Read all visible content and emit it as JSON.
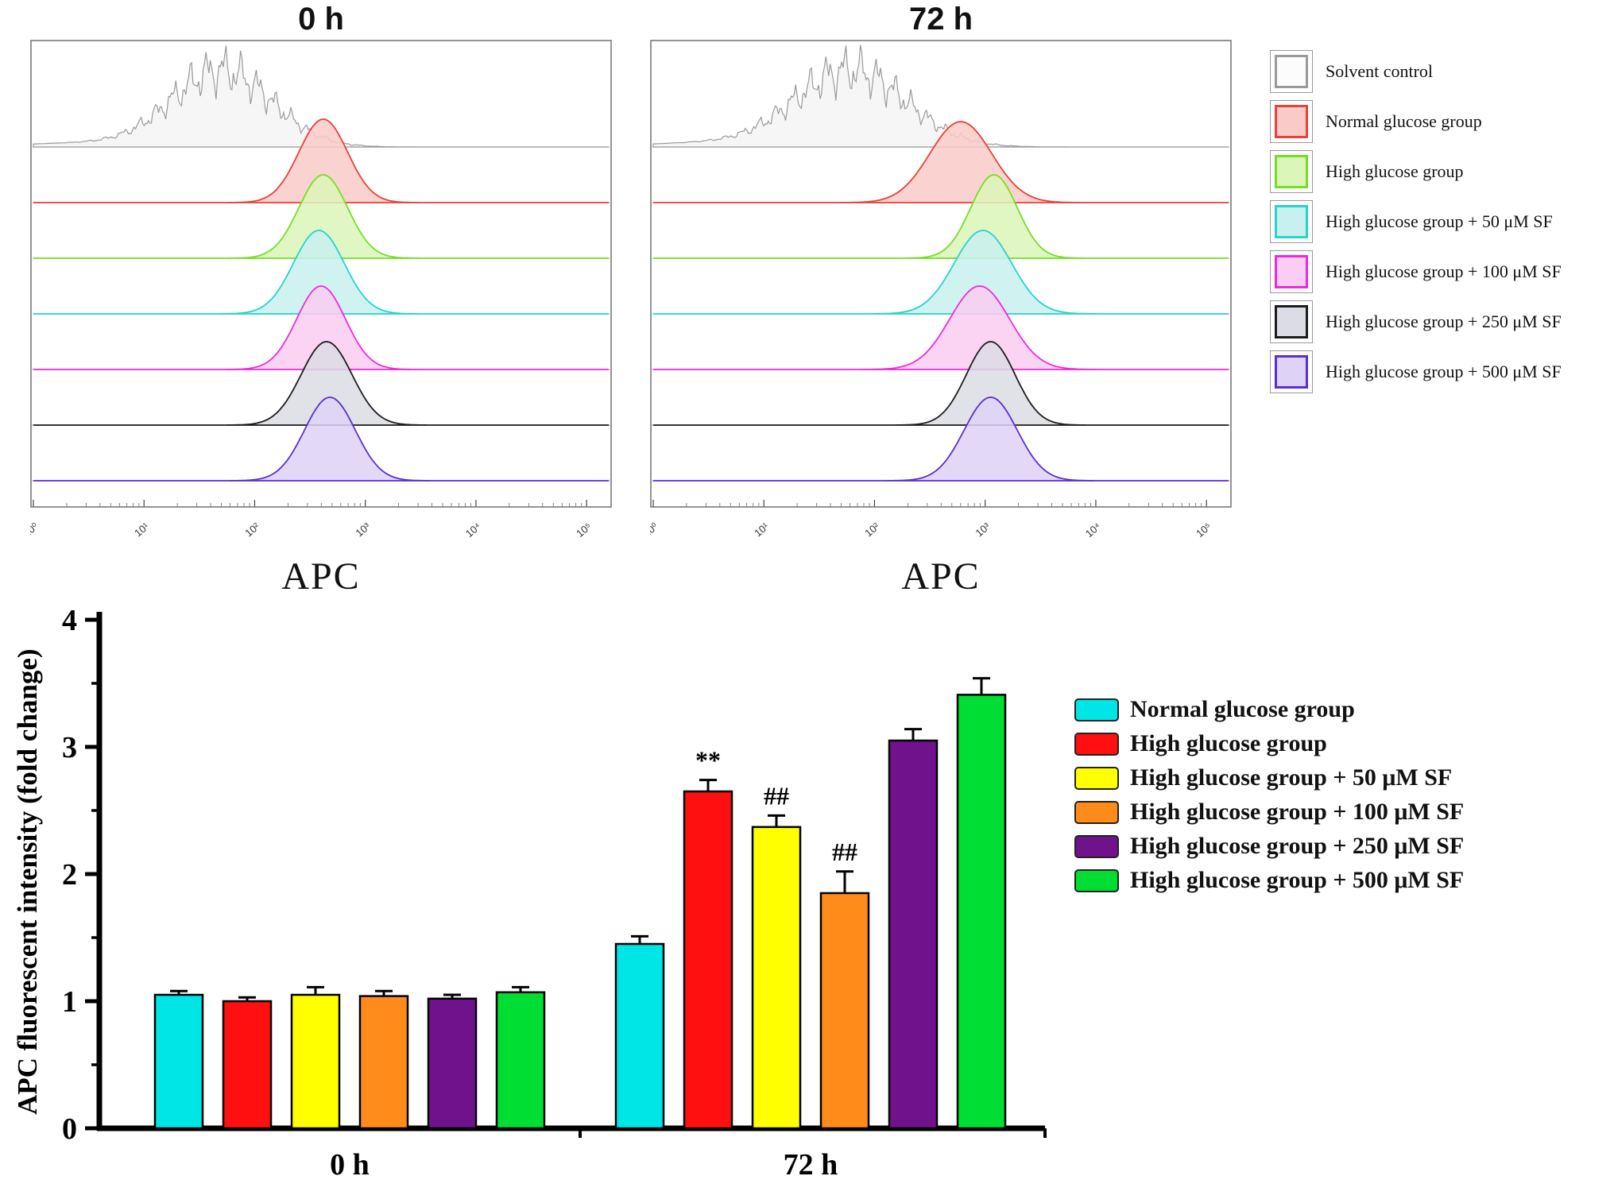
{
  "flow_panels": [
    {
      "title": "0 h",
      "xlabel": "APC",
      "xticks": [
        "10⁰",
        "10¹",
        "10²",
        "10³",
        "10⁴",
        "10⁵"
      ],
      "rows": [
        {
          "name": "Solvent control",
          "stroke": "#9a9a9a",
          "fill": "#f4f4f4",
          "peak": 1.7,
          "sigma": 0.45,
          "amp": 0.92,
          "noisy": true
        },
        {
          "name": "Normal glucose group",
          "stroke": "#e8403a",
          "fill": "#f9cbc8",
          "peak": 2.62,
          "sigma": 0.22,
          "amp": 1.0
        },
        {
          "name": "High glucose group",
          "stroke": "#77dd26",
          "fill": "#daf6b9",
          "peak": 2.62,
          "sigma": 0.22,
          "amp": 1.0
        },
        {
          "name": "High glucose group + 50 μM SF",
          "stroke": "#26d3ce",
          "fill": "#c8f0ee",
          "peak": 2.58,
          "sigma": 0.23,
          "amp": 1.0
        },
        {
          "name": "High glucose group + 100 μM SF",
          "stroke": "#ee2ad8",
          "fill": "#facdf2",
          "peak": 2.6,
          "sigma": 0.22,
          "amp": 1.0
        },
        {
          "name": "High glucose group + 250 μM SF",
          "stroke": "#1c1c1c",
          "fill": "#dcdce4",
          "peak": 2.65,
          "sigma": 0.23,
          "amp": 1.0
        },
        {
          "name": "High glucose group + 500 μM SF",
          "stroke": "#5a2fd0",
          "fill": "#ded2f6",
          "peak": 2.68,
          "sigma": 0.23,
          "amp": 1.0
        }
      ]
    },
    {
      "title": "72 h",
      "xlabel": "APC",
      "xticks": [
        "10⁰",
        "10¹",
        "10²",
        "10³",
        "10⁴",
        "10⁵"
      ],
      "rows": [
        {
          "name": "Solvent control",
          "stroke": "#9a9a9a",
          "fill": "#f4f4f4",
          "peak": 1.78,
          "sigma": 0.5,
          "amp": 0.92,
          "noisy": true
        },
        {
          "name": "Normal glucose group",
          "stroke": "#e8403a",
          "fill": "#f9cbc8",
          "peak": 2.78,
          "sigma": 0.28,
          "amp": 0.97
        },
        {
          "name": "High glucose group",
          "stroke": "#77dd26",
          "fill": "#daf6b9",
          "peak": 3.08,
          "sigma": 0.21,
          "amp": 1.0
        },
        {
          "name": "High glucose group + 50 μM SF",
          "stroke": "#26d3ce",
          "fill": "#c8f0ee",
          "peak": 2.98,
          "sigma": 0.26,
          "amp": 1.0
        },
        {
          "name": "High glucose group + 100 μM SF",
          "stroke": "#ee2ad8",
          "fill": "#facdf2",
          "peak": 2.95,
          "sigma": 0.27,
          "amp": 1.0
        },
        {
          "name": "High glucose group + 250 μM SF",
          "stroke": "#1c1c1c",
          "fill": "#dcdce4",
          "peak": 3.05,
          "sigma": 0.22,
          "amp": 1.0
        },
        {
          "name": "High glucose group + 500 μM SF",
          "stroke": "#5a2fd0",
          "fill": "#ded2f6",
          "peak": 3.05,
          "sigma": 0.24,
          "amp": 1.0
        }
      ]
    }
  ],
  "flow_legend": [
    {
      "label": "Solvent control",
      "fill": "#fcfcfc",
      "border": "#9a9a9a"
    },
    {
      "label": "Normal glucose group",
      "fill": "#f9cbc8",
      "border": "#e8403a"
    },
    {
      "label": "High glucose group",
      "fill": "#daf6b9",
      "border": "#77dd26"
    },
    {
      "label": "High glucose group + 50 μM SF",
      "fill": "#c8f0ee",
      "border": "#26d3ce"
    },
    {
      "label": "High glucose group + 100 μM SF",
      "fill": "#facdf2",
      "border": "#ee2ad8"
    },
    {
      "label": "High glucose group + 250 μM SF",
      "fill": "#dcdce4",
      "border": "#1c1c1c"
    },
    {
      "label": "High glucose group + 500 μM SF",
      "fill": "#ded2f6",
      "border": "#5a2fd0"
    }
  ],
  "chart_data": {
    "type": "bar",
    "title": "",
    "xlabel": "",
    "ylabel": "APC fluorescent intensity (fold change)",
    "ylim": [
      0,
      4
    ],
    "yticks": [
      0,
      1,
      2,
      3,
      4
    ],
    "categories": [
      "0 h",
      "72 h"
    ],
    "legend_position": "right",
    "series": [
      {
        "name": "Normal glucose group",
        "color": "#00e6e6",
        "values": [
          1.05,
          1.45
        ],
        "errors": [
          0.03,
          0.06
        ],
        "annotations": [
          "",
          ""
        ]
      },
      {
        "name": "High glucose group",
        "color": "#ff0f0f",
        "values": [
          1.0,
          2.65
        ],
        "errors": [
          0.03,
          0.09
        ],
        "annotations": [
          "",
          "**"
        ]
      },
      {
        "name": "High glucose group + 50 μM SF",
        "color": "#ffff00",
        "values": [
          1.05,
          2.37
        ],
        "errors": [
          0.06,
          0.09
        ],
        "annotations": [
          "",
          "##"
        ]
      },
      {
        "name": "High glucose group + 100 μM SF",
        "color": "#ff8c1a",
        "values": [
          1.04,
          1.85
        ],
        "errors": [
          0.04,
          0.17
        ],
        "annotations": [
          "",
          "##"
        ]
      },
      {
        "name": "High glucose group + 250 μM SF",
        "color": "#70128c",
        "values": [
          1.02,
          3.05
        ],
        "errors": [
          0.03,
          0.09
        ],
        "annotations": [
          "",
          ""
        ]
      },
      {
        "name": "High glucose group + 500 μM SF",
        "color": "#00dd33",
        "values": [
          1.07,
          3.41
        ],
        "errors": [
          0.04,
          0.13
        ],
        "annotations": [
          "",
          ""
        ]
      }
    ]
  }
}
